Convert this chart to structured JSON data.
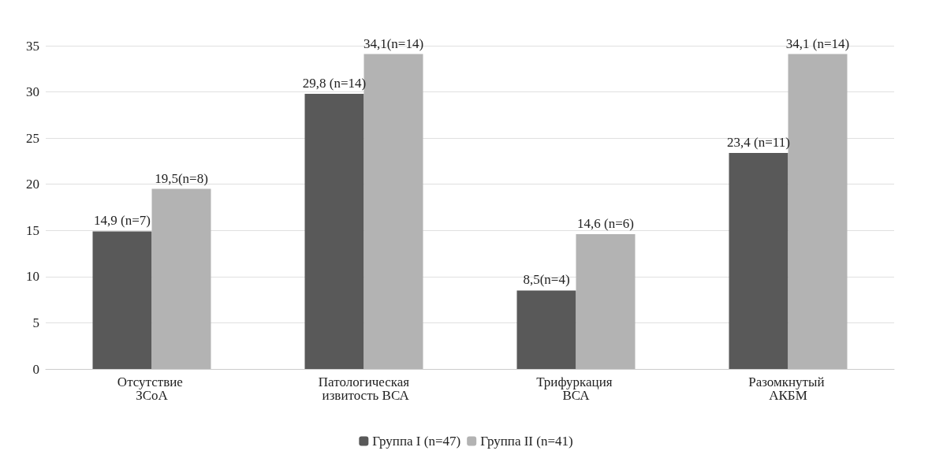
{
  "chart_data": {
    "type": "bar",
    "categories": [
      "Отсутствие ЗСоА",
      "Патологическая извитость ВСА",
      "Трифуркация ВСА",
      "Разомкнутый АКБМ"
    ],
    "series": [
      {
        "name": "Группа I (n=47)",
        "color": "#595959",
        "values": [
          14.9,
          29.8,
          8.5,
          23.4
        ],
        "value_labels": [
          "14,9 (n=7)",
          "29,8 (n=14)",
          "8,5(n=4)",
          "23,4 (n=11)"
        ]
      },
      {
        "name": "Группа II (n=41)",
        "color": "#b3b3b3",
        "values": [
          19.5,
          34.1,
          14.6,
          34.1
        ],
        "value_labels": [
          "19,5(n=8)",
          "34,1(n=14)",
          "14,6 (n=6)",
          "34,1 (n=14)"
        ]
      }
    ],
    "ylim": [
      0,
      35
    ],
    "yticks": [
      0,
      5,
      10,
      15,
      20,
      25,
      30,
      35
    ],
    "grid": "y",
    "legend": "bottom"
  }
}
